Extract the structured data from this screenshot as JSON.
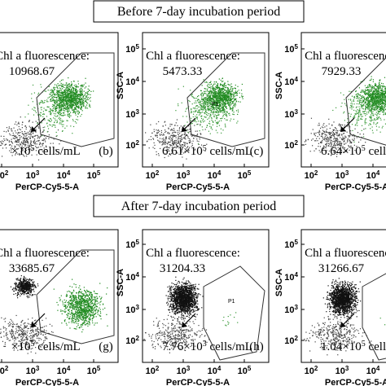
{
  "axes": {
    "x_label": "PerCP-Cy5-5-A",
    "y_label": "SSC-A",
    "ticks": [
      {
        "base": "10",
        "exp": "2"
      },
      {
        "base": "10",
        "exp": "3"
      },
      {
        "base": "10",
        "exp": "4"
      },
      {
        "base": "10",
        "exp": "5"
      }
    ]
  },
  "sections": [
    {
      "heading": "Before 7-day incubation period",
      "panels": [
        {
          "title": "Chl a fluorescence:",
          "value": "10968.67",
          "cells": {
            "pre": "×10",
            "exp": "5",
            "post": " cells/mL"
          },
          "letter": "(b)"
        },
        {
          "title": "Chl a fluorescence:",
          "value": "5473.33",
          "cells": {
            "pre": "6.61×10",
            "exp": "5",
            "post": " cells/mL"
          },
          "letter": "(c)",
          "gate_label": "P1"
        },
        {
          "title": "Chl a fluorescence:",
          "value": "7929.33",
          "cells": {
            "pre": "6.64×10",
            "exp": "5",
            "post": " cells/mL"
          }
        }
      ]
    },
    {
      "heading": "After 7-day incubation period",
      "panels": [
        {
          "title": "Chl a fluorescence:",
          "value": "33685.67",
          "cells": {
            "pre": "×10",
            "exp": "5",
            "post": " cells/mL"
          },
          "letter": "(g)"
        },
        {
          "title": "Chl a fluorescence:",
          "value": "31204.33",
          "cells": {
            "pre": "7.76×10",
            "exp": "3",
            "post": " cells/mL"
          },
          "letter": "(h)",
          "gate_label": "P1"
        },
        {
          "title": "Chl a fluorescence:",
          "value": "31266.67",
          "cells": {
            "pre": "1.04×10",
            "exp": "5",
            "post": " cells/mL"
          }
        }
      ]
    }
  ]
}
